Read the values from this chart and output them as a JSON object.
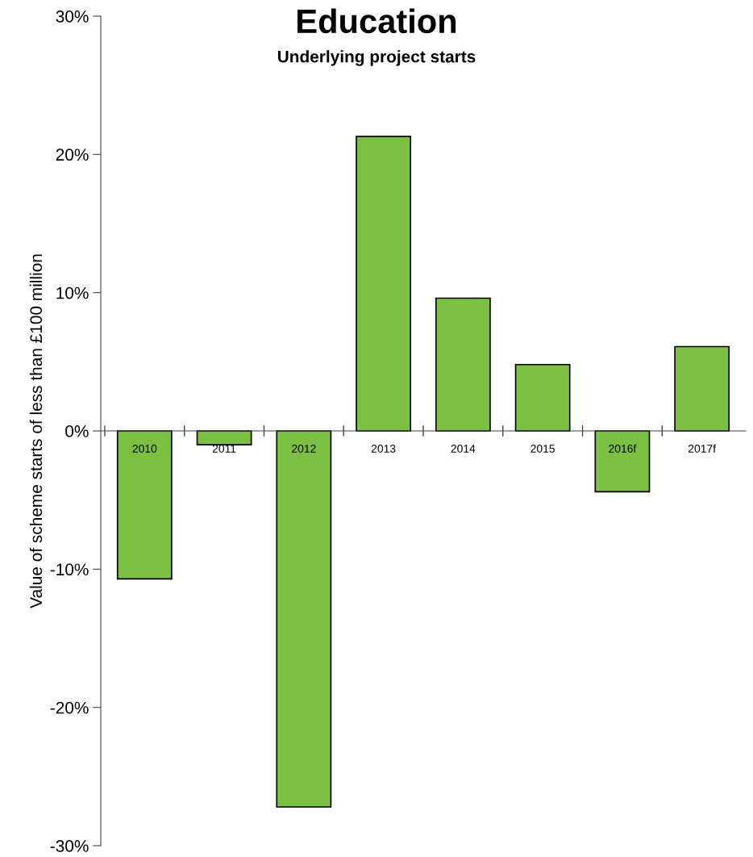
{
  "chart_data": {
    "type": "bar",
    "title": "Education",
    "subtitle": "Underlying project starts",
    "ylabel": "Value of scheme starts of less than £100 million",
    "categories": [
      "2010",
      "2011",
      "2012",
      "2013",
      "2014",
      "2015",
      "2016f",
      "2017f"
    ],
    "values": [
      -10.7,
      -1.0,
      -27.2,
      21.3,
      9.6,
      4.8,
      -4.4,
      6.1
    ],
    "color": "#7bc043",
    "ylim": [
      -30,
      30
    ],
    "yticks": [
      {
        "value": -30,
        "label": "-30%"
      },
      {
        "value": -20,
        "label": "-20%"
      },
      {
        "value": -10,
        "label": "-10%"
      },
      {
        "value": 0,
        "label": "0%"
      },
      {
        "value": 10,
        "label": "10%"
      },
      {
        "value": 20,
        "label": "20%"
      },
      {
        "value": 30,
        "label": "30%"
      }
    ],
    "grid": false,
    "legend": false
  }
}
